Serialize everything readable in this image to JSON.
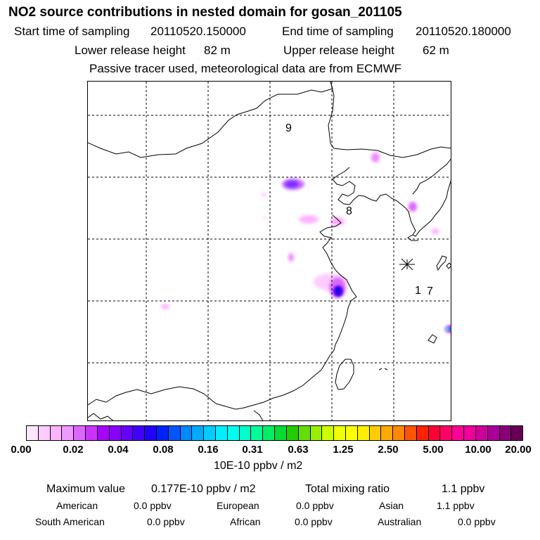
{
  "header": {
    "title": "NO2 source contributions in nested domain for gosan_201105",
    "start_label": "Start time of sampling",
    "start_value": "20110520.150000",
    "end_label": "End time of sampling",
    "end_value": "20110520.180000",
    "lower_label": "Lower release height",
    "lower_value": "82 m",
    "upper_label": "Upper release height",
    "upper_value": "62 m",
    "note": "Passive tracer used, meteorological data are from ECMWF"
  },
  "map": {
    "labels": {
      "nine": "9",
      "eight": "8",
      "one": "1",
      "seven": "7"
    },
    "release_site_icon": "asterisk-icon"
  },
  "colorbar": {
    "colors": [
      "#ffe6ff",
      "#ffccff",
      "#ffb3ff",
      "#ee99ff",
      "#dd66ff",
      "#cc33ff",
      "#aa00ff",
      "#8800ff",
      "#6600ff",
      "#4400ff",
      "#2200ff",
      "#0022ff",
      "#0055ff",
      "#0088ff",
      "#00aaff",
      "#00ccff",
      "#00eeff",
      "#00ffee",
      "#00ffcc",
      "#00ff99",
      "#00ee66",
      "#00dd33",
      "#22cc00",
      "#66dd00",
      "#99ee00",
      "#ccff00",
      "#eeff00",
      "#ffff00",
      "#ffee00",
      "#ffcc00",
      "#ffaa00",
      "#ff8800",
      "#ff5500",
      "#ff2200",
      "#ff0033",
      "#ff0066",
      "#ff0099",
      "#ee0099",
      "#cc0099",
      "#aa0099",
      "#880077",
      "#660055"
    ],
    "ticks": [
      "0.00",
      "0.02",
      "0.04",
      "0.08",
      "0.16",
      "0.31",
      "0.63",
      "1.25",
      "2.50",
      "5.00",
      "10.00",
      "20.00"
    ],
    "unit": "10E-10 ppbv / m2"
  },
  "stats": {
    "max_label": "Maximum value",
    "max_value": "0.177E-10 ppbv / m2",
    "total_label": "Total mixing ratio",
    "total_value": "1.1 ppbv",
    "regions": [
      {
        "name": "American",
        "value": "0.0 ppbv"
      },
      {
        "name": "European",
        "value": "0.0 ppbv"
      },
      {
        "name": "Asian",
        "value": "1.1 ppbv"
      },
      {
        "name": "South American",
        "value": "0.0 ppbv"
      },
      {
        "name": "African",
        "value": "0.0 ppbv"
      },
      {
        "name": "Australian",
        "value": "0.0 ppbv"
      }
    ]
  }
}
